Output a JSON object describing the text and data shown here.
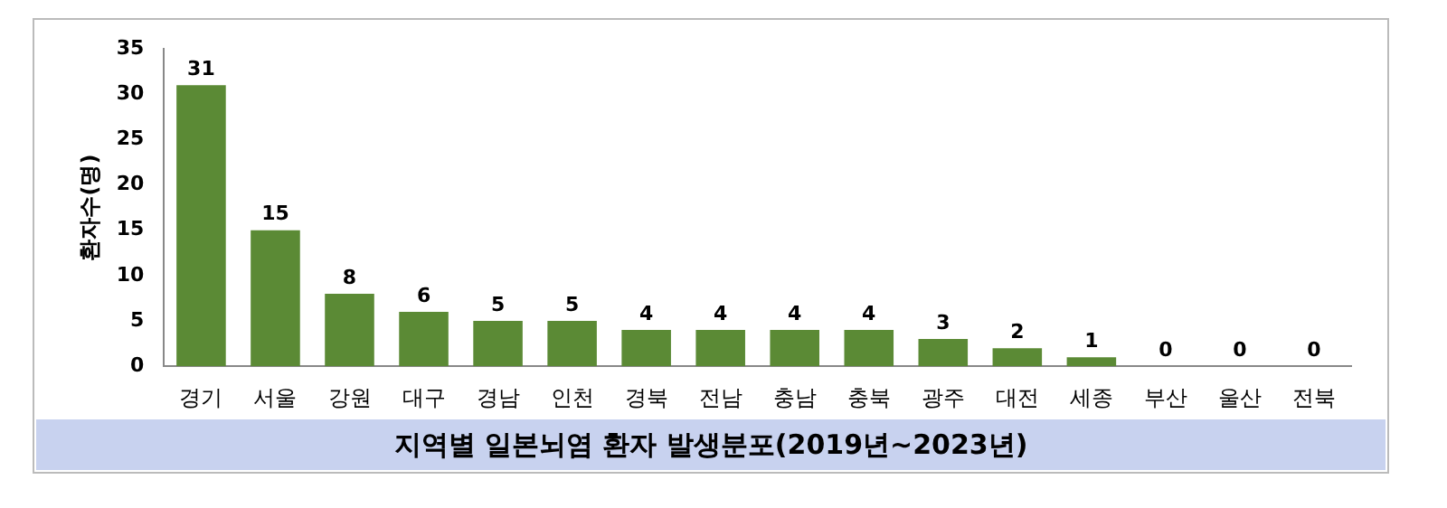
{
  "chart_data": {
    "type": "bar",
    "title": "지역별 일본뇌염 환자 발생분포(2019년~2023년)",
    "ylabel": "환자수(명)",
    "categories": [
      "경기",
      "서울",
      "강원",
      "대구",
      "경남",
      "인천",
      "경북",
      "전남",
      "충남",
      "충북",
      "광주",
      "대전",
      "세종",
      "부산",
      "울산",
      "전북"
    ],
    "values": [
      31,
      15,
      8,
      6,
      5,
      5,
      4,
      4,
      4,
      4,
      3,
      2,
      1,
      0,
      0,
      0
    ],
    "color": "#5b8a35",
    "ylim": [
      0,
      35
    ],
    "yticks": [
      0,
      5,
      10,
      15,
      20,
      25,
      30,
      35
    ],
    "grid": false,
    "legend": false,
    "data_labels": true
  }
}
